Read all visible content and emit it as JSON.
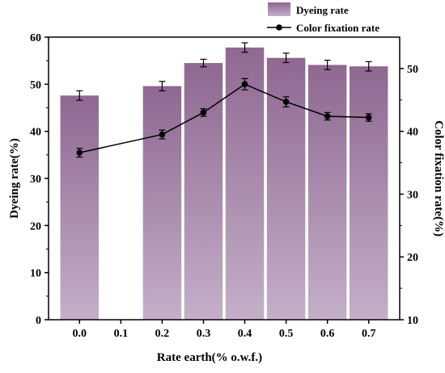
{
  "chart_data": {
    "type": "bar",
    "categories": [
      "0.0",
      "0.1",
      "0.2",
      "0.3",
      "0.4",
      "0.5",
      "0.6",
      "0.7"
    ],
    "xlabel": "Rate earth(% o.w.f.)",
    "ylabel": "Dyeing rate(%)",
    "y2label": "Color fixation rate(%)",
    "ylim": [
      0,
      60
    ],
    "y2lim": [
      10,
      55
    ],
    "yticks": [
      0,
      10,
      20,
      30,
      40,
      50,
      60
    ],
    "y2ticks": [
      10,
      20,
      30,
      40,
      50
    ],
    "series": [
      {
        "name": "Dyeing rate",
        "type": "bar",
        "axis": "left",
        "x": [
          "0.0",
          "0.2",
          "0.3",
          "0.4",
          "0.5",
          "0.6",
          "0.7"
        ],
        "values": [
          47.6,
          49.6,
          54.5,
          57.8,
          55.6,
          54.1,
          53.8
        ],
        "errors": [
          1.0,
          1.0,
          0.8,
          1.0,
          1.0,
          1.0,
          1.0
        ]
      },
      {
        "name": "Color fixation rate",
        "type": "line",
        "axis": "right",
        "x": [
          "0.0",
          "0.2",
          "0.3",
          "0.4",
          "0.5",
          "0.6",
          "0.7"
        ],
        "values": [
          36.6,
          39.5,
          43.0,
          47.5,
          44.7,
          42.4,
          42.2
        ],
        "errors": [
          0.7,
          0.7,
          0.6,
          0.9,
          0.8,
          0.6,
          0.6
        ]
      }
    ],
    "legend_position": "top-right",
    "colors": {
      "bar_top": "#8f6892",
      "bar_bottom": "#c4afc8",
      "line": "#000000"
    }
  }
}
